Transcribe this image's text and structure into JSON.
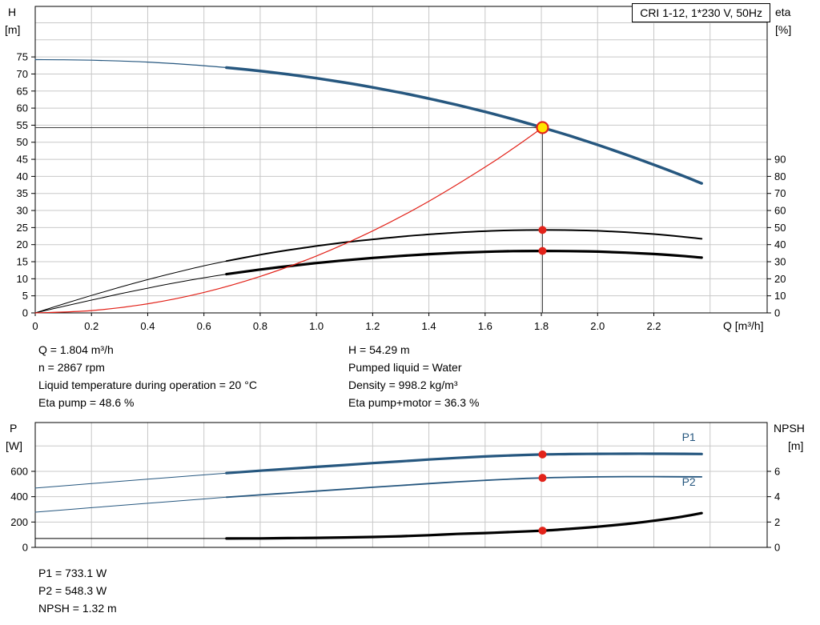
{
  "chart_data": {
    "type": "line",
    "title_box": "CRI 1-12, 1*230 V, 50Hz",
    "charts": [
      {
        "name": "hq-eta-chart",
        "x_axis": {
          "label": "Q [m³/h]",
          "min": 0,
          "max": 2.603,
          "ticks": [
            "0",
            "0.2",
            "0.4",
            "0.6",
            "0.8",
            "1.0",
            "1.2",
            "1.4",
            "1.6",
            "1.8",
            "2.0",
            "2.2"
          ]
        },
        "y_left": {
          "label1": "H",
          "label2": "[m]",
          "min": 0,
          "max": 89.8,
          "ticks": [
            "0",
            "5",
            "10",
            "15",
            "20",
            "25",
            "30",
            "35",
            "40",
            "45",
            "50",
            "55",
            "60",
            "65",
            "70",
            "75"
          ]
        },
        "y_right": {
          "label1": "eta",
          "label2": "[%]",
          "min": 0,
          "max": 179.6,
          "ticks": [
            "0",
            "10",
            "20",
            "30",
            "40",
            "50",
            "60",
            "70",
            "80",
            "90"
          ]
        },
        "series": [
          {
            "name": "pump-head",
            "axis": "left",
            "color": "#26577f",
            "width": 3.5,
            "thin_width": 1.2,
            "split": 0.68,
            "points": [
              [
                0,
                74.2
              ],
              [
                0.1,
                74.17
              ],
              [
                0.2,
                74.04
              ],
              [
                0.3,
                73.82
              ],
              [
                0.4,
                73.48
              ],
              [
                0.5,
                73.02
              ],
              [
                0.6,
                72.43
              ],
              [
                0.68,
                71.87
              ],
              [
                0.8,
                70.87
              ],
              [
                0.9,
                69.89
              ],
              [
                1.0,
                68.77
              ],
              [
                1.1,
                67.5
              ],
              [
                1.2,
                66.08
              ],
              [
                1.3,
                64.52
              ],
              [
                1.4,
                62.8
              ],
              [
                1.5,
                60.93
              ],
              [
                1.6,
                58.91
              ],
              [
                1.7,
                56.73
              ],
              [
                1.804,
                54.29
              ],
              [
                1.9,
                51.9
              ],
              [
                2.0,
                49.23
              ],
              [
                2.1,
                46.4
              ],
              [
                2.2,
                43.41
              ],
              [
                2.3,
                40.26
              ],
              [
                2.37,
                37.95
              ]
            ]
          },
          {
            "name": "eta-pump",
            "axis": "right",
            "color": "#000000",
            "width": 2,
            "thin_width": 1,
            "split": 0.68,
            "points": [
              [
                0,
                0
              ],
              [
                0.1,
                5.2
              ],
              [
                0.2,
                10.2
              ],
              [
                0.3,
                15.0
              ],
              [
                0.4,
                19.5
              ],
              [
                0.5,
                23.7
              ],
              [
                0.6,
                27.6
              ],
              [
                0.68,
                30.4
              ],
              [
                0.8,
                34.1
              ],
              [
                0.9,
                36.8
              ],
              [
                1.0,
                39.2
              ],
              [
                1.1,
                41.3
              ],
              [
                1.2,
                43.1
              ],
              [
                1.3,
                44.7
              ],
              [
                1.4,
                46.0
              ],
              [
                1.5,
                47.1
              ],
              [
                1.6,
                47.9
              ],
              [
                1.7,
                48.4
              ],
              [
                1.804,
                48.6
              ],
              [
                1.9,
                48.5
              ],
              [
                2.0,
                48.1
              ],
              [
                2.1,
                47.3
              ],
              [
                2.2,
                46.2
              ],
              [
                2.3,
                44.7
              ],
              [
                2.37,
                43.4
              ]
            ]
          },
          {
            "name": "eta-pump-motor",
            "axis": "right",
            "color": "#000000",
            "width": 3.2,
            "thin_width": 1,
            "split": 0.68,
            "points": [
              [
                0,
                0
              ],
              [
                0.1,
                3.8
              ],
              [
                0.2,
                7.5
              ],
              [
                0.3,
                11.1
              ],
              [
                0.4,
                14.5
              ],
              [
                0.5,
                17.7
              ],
              [
                0.6,
                20.6
              ],
              [
                0.68,
                22.7
              ],
              [
                0.8,
                25.4
              ],
              [
                0.9,
                27.4
              ],
              [
                1.0,
                29.2
              ],
              [
                1.1,
                30.8
              ],
              [
                1.2,
                32.2
              ],
              [
                1.3,
                33.4
              ],
              [
                1.4,
                34.4
              ],
              [
                1.5,
                35.2
              ],
              [
                1.6,
                35.8
              ],
              [
                1.7,
                36.2
              ],
              [
                1.804,
                36.3
              ],
              [
                1.9,
                36.2
              ],
              [
                2.0,
                35.9
              ],
              [
                2.1,
                35.3
              ],
              [
                2.2,
                34.5
              ],
              [
                2.3,
                33.4
              ],
              [
                2.37,
                32.4
              ]
            ]
          },
          {
            "name": "system-curve",
            "axis": "left",
            "color": "#e2231a",
            "width": 1.2,
            "points": [
              [
                0,
                0
              ],
              [
                0.2,
                0.67
              ],
              [
                0.4,
                2.67
              ],
              [
                0.6,
                6.0
              ],
              [
                0.8,
                10.68
              ],
              [
                1.0,
                16.68
              ],
              [
                1.2,
                24.02
              ],
              [
                1.4,
                32.7
              ],
              [
                1.6,
                42.71
              ],
              [
                1.7,
                48.21
              ],
              [
                1.804,
                54.29
              ]
            ]
          }
        ],
        "duty_point": {
          "q": 1.804,
          "value": 54.29,
          "axis": "left"
        },
        "markers": [
          {
            "q": 1.804,
            "value": 48.6,
            "axis": "right"
          },
          {
            "q": 1.804,
            "value": 36.3,
            "axis": "right"
          }
        ],
        "labels": []
      },
      {
        "name": "power-npsh-chart",
        "x_axis": {
          "label": "",
          "min": 0,
          "max": 2.603,
          "ticks": []
        },
        "y_left": {
          "label1": "P",
          "label2": "[W]",
          "min": 0,
          "max": 985,
          "ticks": [
            "0",
            "200",
            "400",
            "600"
          ]
        },
        "y_right": {
          "label1": "NPSH",
          "label2": "[m]",
          "min": 0,
          "max": 9.85,
          "ticks": [
            "0",
            "2",
            "4",
            "6"
          ]
        },
        "series": [
          {
            "name": "power-p1",
            "axis": "left",
            "color": "#26577f",
            "width": 3.2,
            "thin_width": 1,
            "split": 0.68,
            "points": [
              [
                0,
                468
              ],
              [
                0.2,
                503
              ],
              [
                0.4,
                538
              ],
              [
                0.6,
                572
              ],
              [
                0.68,
                586
              ],
              [
                0.8,
                605
              ],
              [
                0.9,
                620
              ],
              [
                1.0,
                635
              ],
              [
                1.1,
                650
              ],
              [
                1.2,
                665
              ],
              [
                1.3,
                679
              ],
              [
                1.4,
                693
              ],
              [
                1.5,
                706
              ],
              [
                1.6,
                717
              ],
              [
                1.7,
                726
              ],
              [
                1.804,
                733.1
              ],
              [
                1.9,
                736
              ],
              [
                2.0,
                738
              ],
              [
                2.1,
                739
              ],
              [
                2.2,
                739
              ],
              [
                2.3,
                738
              ],
              [
                2.37,
                737
              ]
            ]
          },
          {
            "name": "power-p2",
            "axis": "left",
            "color": "#26577f",
            "width": 1.8,
            "thin_width": 1,
            "split": 0.68,
            "points": [
              [
                0,
                278
              ],
              [
                0.2,
                313
              ],
              [
                0.4,
                348
              ],
              [
                0.6,
                382
              ],
              [
                0.68,
                396
              ],
              [
                0.8,
                414
              ],
              [
                0.9,
                429
              ],
              [
                1.0,
                444
              ],
              [
                1.1,
                459
              ],
              [
                1.2,
                474
              ],
              [
                1.3,
                489
              ],
              [
                1.4,
                503
              ],
              [
                1.5,
                517
              ],
              [
                1.6,
                529
              ],
              [
                1.7,
                540
              ],
              [
                1.804,
                548.3
              ],
              [
                1.9,
                553
              ],
              [
                2.0,
                556
              ],
              [
                2.1,
                558
              ],
              [
                2.2,
                558
              ],
              [
                2.3,
                557
              ],
              [
                2.37,
                556
              ]
            ]
          },
          {
            "name": "npsh",
            "axis": "right",
            "color": "#000000",
            "width": 3.2,
            "thin_width": 1,
            "split": 0.68,
            "points": [
              [
                0,
                0.7
              ],
              [
                0.2,
                0.7
              ],
              [
                0.4,
                0.7
              ],
              [
                0.6,
                0.7
              ],
              [
                0.68,
                0.7
              ],
              [
                0.8,
                0.71
              ],
              [
                0.9,
                0.73
              ],
              [
                1.0,
                0.75
              ],
              [
                1.1,
                0.78
              ],
              [
                1.2,
                0.82
              ],
              [
                1.3,
                0.88
              ],
              [
                1.4,
                0.96
              ],
              [
                1.5,
                1.06
              ],
              [
                1.6,
                1.13
              ],
              [
                1.7,
                1.22
              ],
              [
                1.804,
                1.32
              ],
              [
                1.9,
                1.46
              ],
              [
                2.0,
                1.63
              ],
              [
                2.1,
                1.84
              ],
              [
                2.2,
                2.1
              ],
              [
                2.3,
                2.42
              ],
              [
                2.37,
                2.7
              ]
            ]
          }
        ],
        "markers": [
          {
            "q": 1.804,
            "value": 733.1,
            "axis": "left"
          },
          {
            "q": 1.804,
            "value": 548.3,
            "axis": "left"
          },
          {
            "q": 1.804,
            "value": 1.32,
            "axis": "right"
          }
        ],
        "labels": [
          {
            "text": "P1",
            "q": 2.3,
            "value": 840,
            "axis": "left",
            "color": "#26577f"
          },
          {
            "text": "P2",
            "q": 2.3,
            "value": 485,
            "axis": "left",
            "color": "#26577f"
          }
        ]
      }
    ]
  },
  "results": {
    "top_left": [
      "Q = 1.804 m³/h",
      "n = 2867 rpm",
      "Liquid temperature during operation = 20 °C",
      "Eta pump = 48.6 %"
    ],
    "top_right": [
      "H = 54.29 m",
      "Pumped liquid = Water",
      "Density = 998.2 kg/m³",
      "Eta pump+motor = 36.3 %"
    ],
    "bottom": [
      "P1 = 733.1 W",
      "P2 = 548.3 W",
      "NPSH = 1.32 m"
    ]
  }
}
